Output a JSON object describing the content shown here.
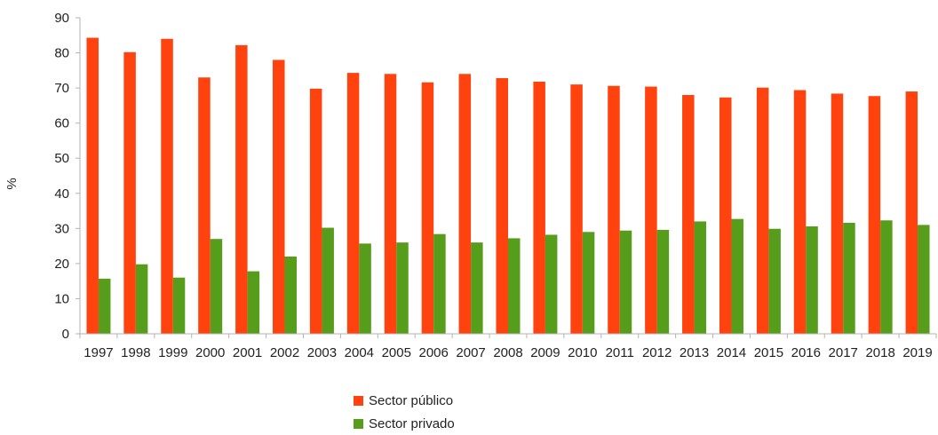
{
  "chart_data": {
    "type": "bar",
    "title": "",
    "xlabel": "",
    "ylabel": "%",
    "ylim": [
      0,
      90
    ],
    "yticks": [
      0,
      10,
      20,
      30,
      40,
      50,
      60,
      70,
      80,
      90
    ],
    "grid": false,
    "legend_position": "bottom",
    "categories": [
      "1997",
      "1998",
      "1999",
      "2000",
      "2001",
      "2002",
      "2003",
      "2004",
      "2005",
      "2006",
      "2007",
      "2008",
      "2009",
      "2010",
      "2011",
      "2012",
      "2013",
      "2014",
      "2015",
      "2016",
      "2017",
      "2018",
      "2019"
    ],
    "series": [
      {
        "name": "Sector público",
        "color": "#ff420e",
        "values": [
          84.3,
          80.2,
          84.0,
          73.0,
          82.2,
          78.0,
          69.8,
          74.3,
          74.0,
          71.6,
          74.0,
          72.8,
          71.8,
          71.0,
          70.6,
          70.4,
          68.0,
          67.3,
          70.1,
          69.4,
          68.4,
          67.7,
          69.0
        ]
      },
      {
        "name": "Sector privado",
        "color": "#579d1c",
        "values": [
          15.7,
          19.8,
          16.0,
          27.0,
          17.8,
          22.0,
          30.2,
          25.7,
          26.0,
          28.4,
          26.0,
          27.2,
          28.2,
          29.0,
          29.4,
          29.6,
          32.0,
          32.7,
          29.9,
          30.6,
          31.6,
          32.3,
          31.0
        ]
      }
    ]
  }
}
